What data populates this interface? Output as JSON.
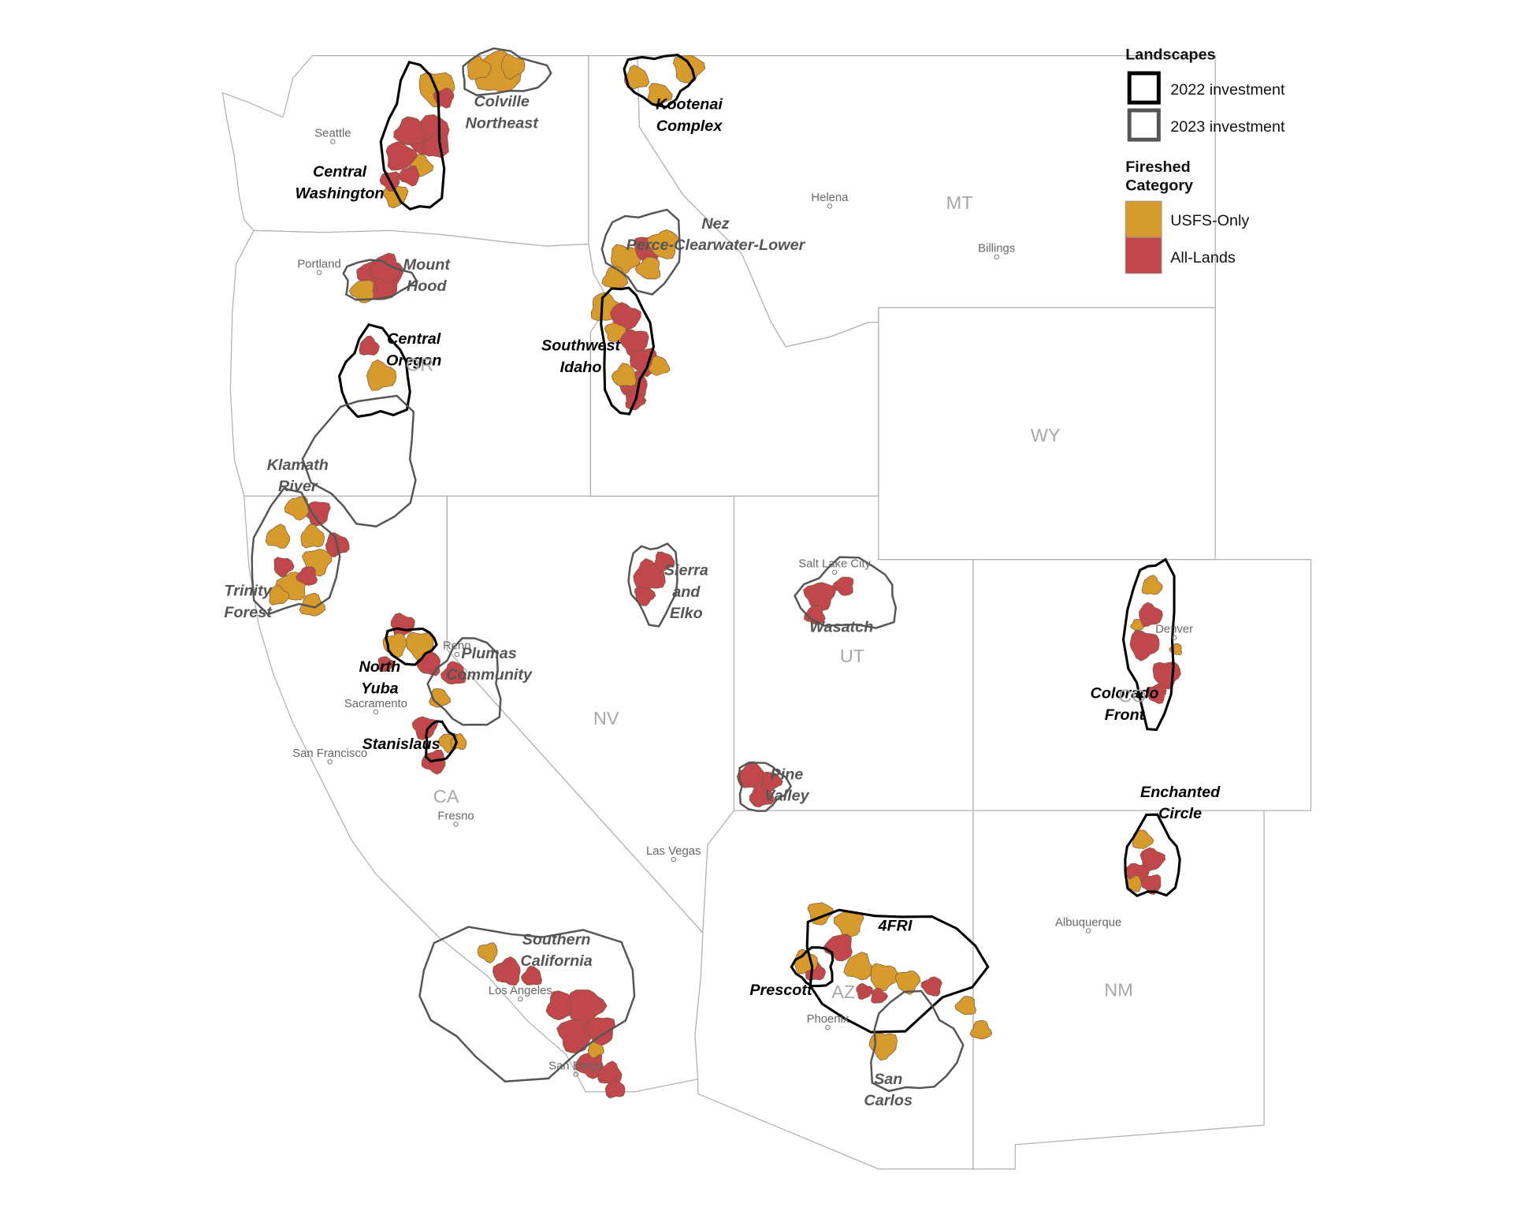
{
  "legend": {
    "landscapes_title": "Landscapes",
    "landscapes": [
      "2022 investment",
      "2023 investment"
    ],
    "landscape_colors": [
      "#000000",
      "#555555"
    ],
    "category_title": [
      "Fireshed",
      "Category"
    ],
    "categories": [
      {
        "label": "USFS-Only",
        "color": "#d69a2d"
      },
      {
        "label": "All-Lands",
        "color": "#c0474b"
      }
    ]
  },
  "landscapes": [
    {
      "lines": [
        "Colville",
        "Northeast"
      ],
      "investment": "2023 investment"
    },
    {
      "lines": [
        "Kootenai",
        "Complex"
      ],
      "investment": "2022 investment"
    },
    {
      "lines": [
        "Central",
        "Washington"
      ],
      "investment": "2022 investment"
    },
    {
      "lines": [
        "Mount",
        "Hood"
      ],
      "investment": "2023 investment"
    },
    {
      "lines": [
        "Nez",
        "Perce-Clearwater-Lower"
      ],
      "investment": "2023 investment"
    },
    {
      "lines": [
        "Central",
        "Oregon"
      ],
      "investment": "2022 investment"
    },
    {
      "lines": [
        "Southwest",
        "Idaho"
      ],
      "investment": "2022 investment"
    },
    {
      "lines": [
        "Klamath",
        "River"
      ],
      "investment": "2023 investment"
    },
    {
      "lines": [
        "Trinity",
        "Forest"
      ],
      "investment": "2023 investment"
    },
    {
      "lines": [
        "North",
        "Yuba"
      ],
      "investment": "2022 investment"
    },
    {
      "lines": [
        "Plumas",
        "Community"
      ],
      "investment": "2023 investment"
    },
    {
      "lines": [
        "Stanislaus"
      ],
      "investment": "2022 investment"
    },
    {
      "lines": [
        "Sierra",
        "and",
        "Elko"
      ],
      "investment": "2023 investment"
    },
    {
      "lines": [
        "Wasatch"
      ],
      "investment": "2023 investment"
    },
    {
      "lines": [
        "Pine",
        "Valley"
      ],
      "investment": "2023 investment"
    },
    {
      "lines": [
        "Colorado",
        "Front"
      ],
      "investment": "2022 investment"
    },
    {
      "lines": [
        "Enchanted",
        "Circle"
      ],
      "investment": "2022 investment"
    },
    {
      "lines": [
        "4FRI"
      ],
      "investment": "2022 investment"
    },
    {
      "lines": [
        "Prescott"
      ],
      "investment": "2022 investment"
    },
    {
      "lines": [
        "San",
        "Carlos"
      ],
      "investment": "2023 investment"
    },
    {
      "lines": [
        "Southern",
        "California"
      ],
      "investment": "2023 investment"
    }
  ],
  "states": [
    "MT",
    "WY",
    "UT",
    "NV",
    "CA",
    "NM",
    "OR",
    "AZ",
    "CO"
  ],
  "cities": [
    "Seattle",
    "Portland",
    "Helena",
    "Billings",
    "Salt Lake City",
    "Denver",
    "Reno",
    "Sacramento",
    "San Francisco",
    "Fresno",
    "Las Vegas",
    "Albuquerque",
    "Phoenix",
    "Los Angeles",
    "San Diego"
  ]
}
